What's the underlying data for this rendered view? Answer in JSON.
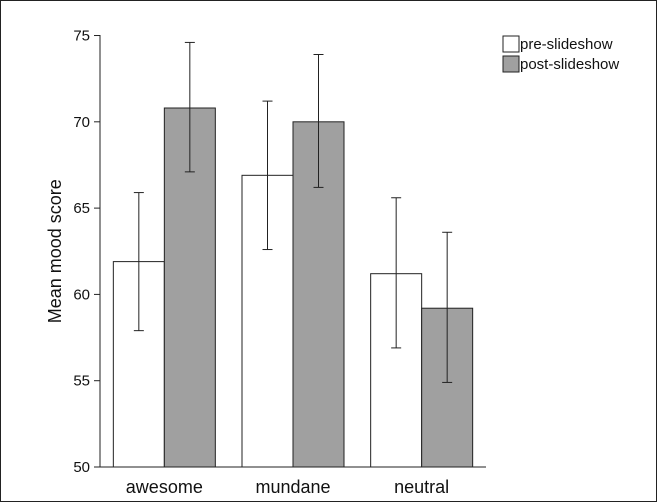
{
  "chart_data": {
    "type": "bar",
    "title": "",
    "xlabel": "",
    "ylabel": "Mean mood score",
    "ylim": [
      50,
      77
    ],
    "yticks": [
      50,
      55,
      60,
      65,
      70,
      75
    ],
    "categories": [
      "awesome",
      "mundane",
      "neutral"
    ],
    "series": [
      {
        "name": "pre-slideshow",
        "color": "#ffffff",
        "values": [
          61.9,
          66.9,
          61.2
        ],
        "error_low": [
          57.9,
          62.6,
          56.9
        ],
        "error_high": [
          65.9,
          71.2,
          65.6
        ]
      },
      {
        "name": "post-slideshow",
        "color": "#a0a0a0",
        "values": [
          70.8,
          70.0,
          59.2
        ],
        "error_low": [
          67.1,
          66.2,
          54.9
        ],
        "error_high": [
          74.6,
          73.9,
          63.6
        ]
      }
    ],
    "legend_position": "top-right",
    "grid": false
  }
}
